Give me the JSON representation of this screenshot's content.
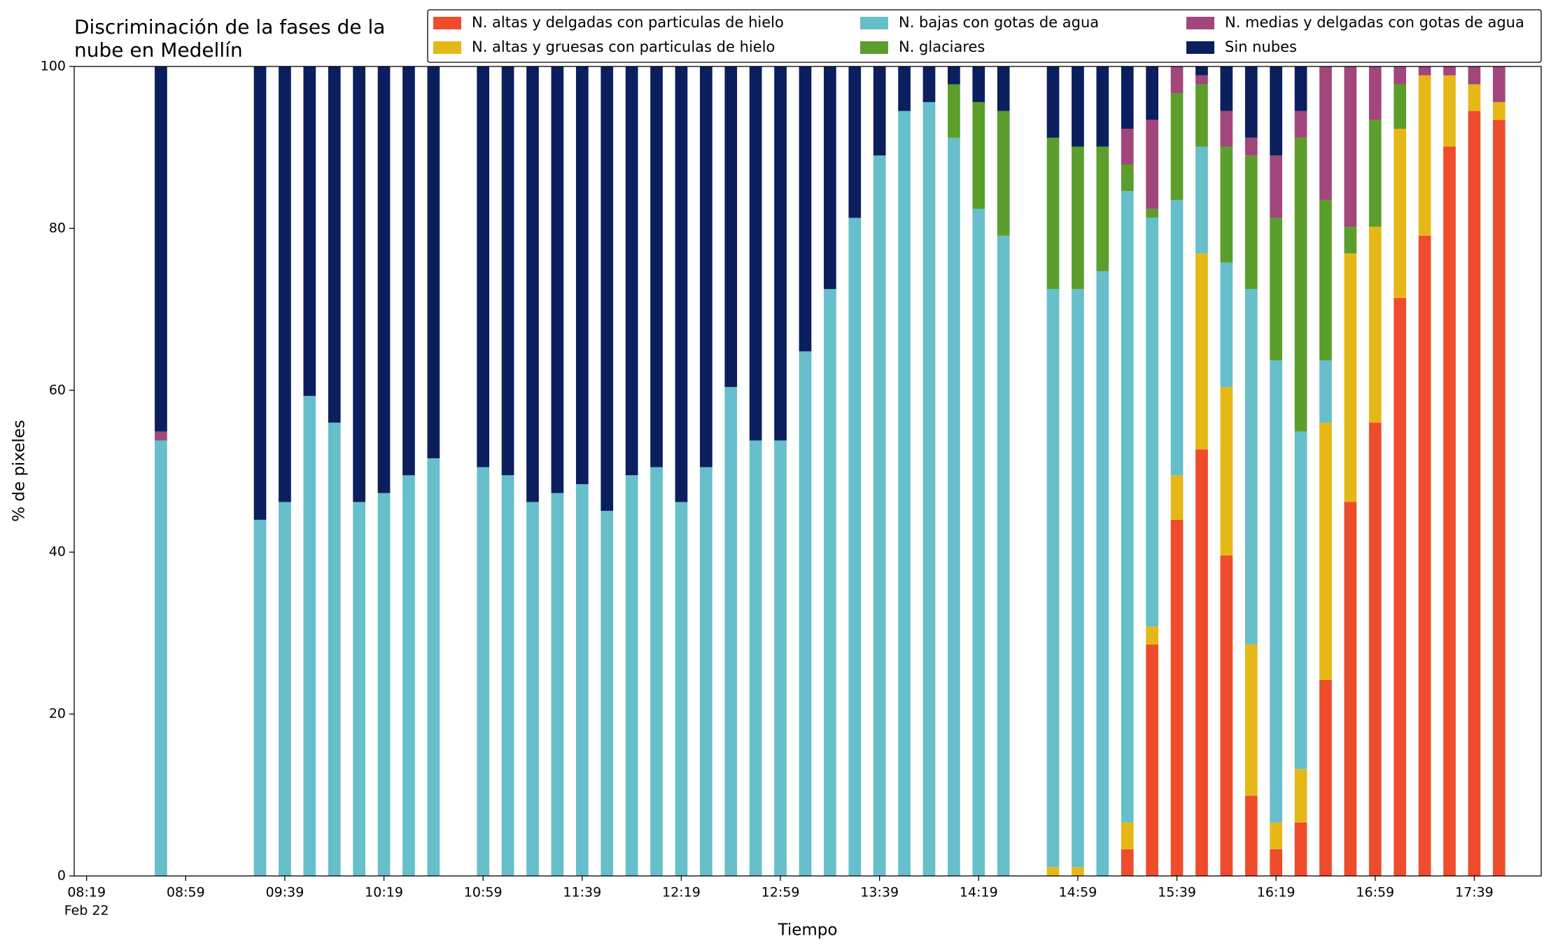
{
  "chart_data": {
    "type": "stacked_bar",
    "title": [
      "Discriminación de la fases de la",
      "nube en Medellín"
    ],
    "xlabel": "Tiempo",
    "ylabel": "% de pixeles",
    "x_date_label": "Feb 22",
    "x": [
      "08:49",
      "09:29",
      "09:39",
      "09:49",
      "09:59",
      "10:09",
      "10:19",
      "10:29",
      "10:39",
      "10:59",
      "11:09",
      "11:19",
      "11:29",
      "11:39",
      "11:49",
      "11:59",
      "12:09",
      "12:19",
      "12:29",
      "12:39",
      "12:49",
      "12:59",
      "13:09",
      "13:19",
      "13:29",
      "13:39",
      "13:49",
      "13:59",
      "14:09",
      "14:19",
      "14:29",
      "14:49",
      "14:59",
      "15:09",
      "15:19",
      "15:29",
      "15:39",
      "15:49",
      "15:59",
      "16:09",
      "16:19",
      "16:29",
      "16:39",
      "16:49",
      "16:59",
      "17:09",
      "17:19",
      "17:29",
      "17:39",
      "17:49"
    ],
    "xlim": [
      "08:14",
      "18:06"
    ],
    "xticks": [
      "08:19",
      "08:59",
      "09:39",
      "10:19",
      "10:59",
      "11:39",
      "12:19",
      "12:59",
      "13:39",
      "14:19",
      "14:59",
      "15:39",
      "16:19",
      "16:59",
      "17:39"
    ],
    "ylim": [
      0,
      100
    ],
    "yticks": [
      0,
      20,
      40,
      60,
      80,
      100
    ],
    "legend": "upper right",
    "series": [
      {
        "name": "N. altas y delgadas con particulas de hielo",
        "color": "#ee4c2c",
        "values": [
          0,
          0,
          0,
          0,
          0,
          0,
          0,
          0,
          0,
          0,
          0,
          0,
          0,
          0,
          0,
          0,
          0,
          0,
          0,
          0,
          0,
          0,
          0,
          0,
          0,
          0,
          0,
          0,
          0,
          0,
          0,
          0,
          0,
          0,
          3.3,
          28.6,
          44,
          52.7,
          39.6,
          9.9,
          3.3,
          6.6,
          24.2,
          46.2,
          56,
          71.4,
          79.1,
          90.1,
          94.5,
          93.4
        ]
      },
      {
        "name": "N. altas y gruesas con particulas de hielo",
        "color": "#e6b817",
        "values": [
          0,
          0,
          0,
          0,
          0,
          0,
          0,
          0,
          0,
          0,
          0,
          0,
          0,
          0,
          0,
          0,
          0,
          0,
          0,
          0,
          0,
          0,
          0,
          0,
          0,
          0,
          0,
          0,
          0,
          0,
          0,
          1.1,
          1.1,
          0,
          3.3,
          2.2,
          5.5,
          24.2,
          20.8,
          18.7,
          3.3,
          6.6,
          31.8,
          30.7,
          24.2,
          20.9,
          19.8,
          8.8,
          3.3,
          2.2
        ]
      },
      {
        "name": "N. bajas con gotas de agua",
        "color": "#66bfca",
        "values": [
          53.8,
          44,
          46.2,
          59.3,
          56,
          46.2,
          47.3,
          49.5,
          51.6,
          50.5,
          49.5,
          46.2,
          47.3,
          48.4,
          45.1,
          49.5,
          50.5,
          46.2,
          50.5,
          60.4,
          53.8,
          53.8,
          64.8,
          72.5,
          81.3,
          89,
          94.5,
          95.6,
          91.2,
          82.4,
          79.1,
          71.4,
          71.4,
          74.7,
          78,
          50.5,
          34,
          13.2,
          15.4,
          43.9,
          57.1,
          41.7,
          7.7,
          0,
          0,
          0,
          0,
          0,
          0,
          0
        ]
      },
      {
        "name": "N. glaciares",
        "color": "#5b9e2c",
        "values": [
          0,
          0,
          0,
          0,
          0,
          0,
          0,
          0,
          0,
          0,
          0,
          0,
          0,
          0,
          0,
          0,
          0,
          0,
          0,
          0,
          0,
          0,
          0,
          0,
          0,
          0,
          0,
          0,
          6.6,
          13.2,
          15.4,
          18.7,
          17.6,
          15.4,
          3.3,
          1.1,
          13.2,
          7.7,
          14.3,
          16.5,
          17.6,
          36.3,
          19.8,
          3.3,
          13.2,
          5.5,
          0,
          0,
          0,
          0
        ]
      },
      {
        "name": "N. medias y delgadas con gotas de agua",
        "color": "#a2467b",
        "values": [
          1.1,
          0,
          0,
          0,
          0,
          0,
          0,
          0,
          0,
          0,
          0,
          0,
          0,
          0,
          0,
          0,
          0,
          0,
          0,
          0,
          0,
          0,
          0,
          0,
          0,
          0,
          0,
          0,
          0,
          0,
          0,
          0,
          0,
          0,
          4.4,
          11,
          3.3,
          1.1,
          4.4,
          2.2,
          7.7,
          3.3,
          16.5,
          19.8,
          6.6,
          2.2,
          1.1,
          1.1,
          2.2,
          4.4
        ]
      },
      {
        "name": "Sin nubes",
        "color": "#0b1f5e",
        "values": [
          45.1,
          56,
          53.8,
          40.7,
          44,
          53.8,
          52.7,
          50.5,
          48.4,
          49.5,
          50.5,
          53.8,
          52.7,
          51.6,
          54.9,
          50.5,
          49.5,
          53.8,
          49.5,
          39.6,
          46.2,
          46.2,
          35.2,
          27.5,
          18.7,
          11,
          5.5,
          4.4,
          2.2,
          4.4,
          5.5,
          8.8,
          9.9,
          9.9,
          7.7,
          6.6,
          0,
          1.1,
          5.5,
          8.8,
          11,
          5.5,
          0,
          0,
          0,
          0,
          0,
          0,
          0,
          0
        ]
      }
    ]
  }
}
